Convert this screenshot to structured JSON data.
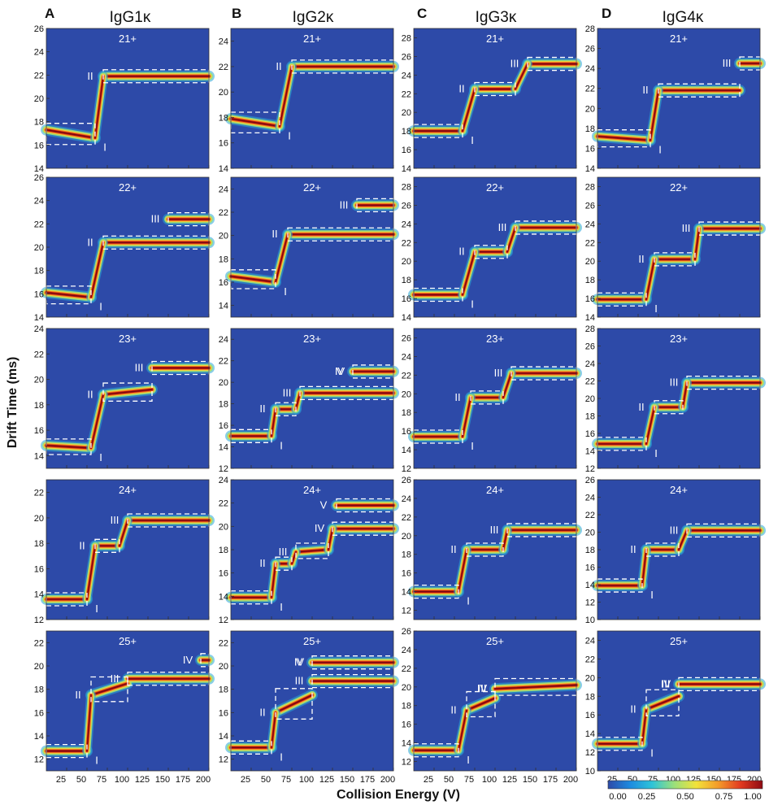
{
  "figure": {
    "ylabel": "Drift Time (ms)",
    "xlabel": "Collision Energy (V)",
    "colorbar": {
      "ticks": [
        "0.00",
        "0.25",
        "0.50",
        "0.75",
        "1.00"
      ],
      "colors": [
        "#2d4aa8",
        "#1c8be0",
        "#2ec4d8",
        "#9be07a",
        "#f2e23a",
        "#f39a2a",
        "#e23a20",
        "#8e0a12"
      ]
    },
    "x_ticks": [
      "25",
      "50",
      "75",
      "100",
      "125",
      "150",
      "175",
      "200"
    ]
  },
  "chart_data": [
    {
      "panel": "A",
      "title": "IgG1κ",
      "charge": "21+",
      "type": "heatmap",
      "xlim": [
        0,
        200
      ],
      "ylim": [
        14,
        26
      ],
      "yticks": [
        14,
        16,
        18,
        20,
        22,
        24,
        26
      ],
      "ridges": [
        {
          "x": [
            0,
            60
          ],
          "y": [
            17.3,
            16.6
          ]
        },
        {
          "x": [
            70,
            200
          ],
          "y": [
            21.9,
            21.9
          ]
        }
      ],
      "features": [
        "I",
        "II"
      ]
    },
    {
      "panel": "B",
      "title": "IgG2κ",
      "charge": "21+",
      "type": "heatmap",
      "xlim": [
        0,
        200
      ],
      "ylim": [
        14,
        25
      ],
      "yticks": [
        14,
        16,
        18,
        20,
        22,
        24
      ],
      "ridges": [
        {
          "x": [
            0,
            60
          ],
          "y": [
            17.9,
            17.3
          ]
        },
        {
          "x": [
            75,
            200
          ],
          "y": [
            22,
            22
          ]
        }
      ],
      "features": [
        "I",
        "II"
      ]
    },
    {
      "panel": "C",
      "title": "IgG3κ",
      "charge": "21+",
      "type": "heatmap",
      "xlim": [
        0,
        200
      ],
      "ylim": [
        14,
        29
      ],
      "yticks": [
        14,
        16,
        18,
        20,
        22,
        24,
        26,
        28
      ],
      "ridges": [
        {
          "x": [
            0,
            60
          ],
          "y": [
            18,
            18
          ]
        },
        {
          "x": [
            75,
            125
          ],
          "y": [
            22.5,
            22.5
          ]
        },
        {
          "x": [
            140,
            200
          ],
          "y": [
            25.2,
            25.2
          ]
        }
      ],
      "features": [
        "I",
        "II",
        "III"
      ]
    },
    {
      "panel": "D",
      "title": "IgG4κ",
      "charge": "21+",
      "type": "heatmap",
      "xlim": [
        0,
        200
      ],
      "ylim": [
        14,
        28
      ],
      "yticks": [
        14,
        16,
        18,
        20,
        22,
        24,
        26,
        28
      ],
      "ridges": [
        {
          "x": [
            0,
            65
          ],
          "y": [
            17.2,
            16.8
          ]
        },
        {
          "x": [
            75,
            175
          ],
          "y": [
            21.8,
            21.8
          ]
        },
        {
          "x": [
            175,
            200
          ],
          "y": [
            24.5,
            24.5
          ]
        }
      ],
      "features": [
        "I",
        "II",
        "III"
      ]
    },
    {
      "panel": "A",
      "title": "",
      "charge": "22+",
      "type": "heatmap",
      "xlim": [
        0,
        200
      ],
      "ylim": [
        14,
        26
      ],
      "yticks": [
        14,
        16,
        18,
        20,
        22,
        24,
        26
      ],
      "ridges": [
        {
          "x": [
            0,
            55
          ],
          "y": [
            16.1,
            15.7
          ]
        },
        {
          "x": [
            70,
            200
          ],
          "y": [
            20.4,
            20.4
          ]
        },
        {
          "x": [
            150,
            200
          ],
          "y": [
            22.4,
            22.4
          ]
        }
      ],
      "features": [
        "I",
        "II",
        "III"
      ]
    },
    {
      "panel": "B",
      "title": "",
      "charge": "22+",
      "type": "heatmap",
      "xlim": [
        0,
        200
      ],
      "ylim": [
        13,
        25
      ],
      "yticks": [
        14,
        16,
        18,
        20,
        22,
        24
      ],
      "ridges": [
        {
          "x": [
            0,
            55
          ],
          "y": [
            16.5,
            16
          ]
        },
        {
          "x": [
            70,
            200
          ],
          "y": [
            20.1,
            20.1
          ]
        },
        {
          "x": [
            155,
            200
          ],
          "y": [
            22.6,
            22.6
          ]
        }
      ],
      "features": [
        "I",
        "II",
        "III"
      ]
    },
    {
      "panel": "C",
      "title": "",
      "charge": "22+",
      "type": "heatmap",
      "xlim": [
        0,
        200
      ],
      "ylim": [
        14,
        29
      ],
      "yticks": [
        14,
        16,
        18,
        20,
        22,
        24,
        26,
        28
      ],
      "ridges": [
        {
          "x": [
            0,
            60
          ],
          "y": [
            16.4,
            16.4
          ]
        },
        {
          "x": [
            75,
            115
          ],
          "y": [
            21,
            21
          ]
        },
        {
          "x": [
            125,
            200
          ],
          "y": [
            23.6,
            23.6
          ]
        }
      ],
      "features": [
        "I",
        "II",
        "III"
      ]
    },
    {
      "panel": "D",
      "title": "",
      "charge": "22+",
      "type": "heatmap",
      "xlim": [
        0,
        200
      ],
      "ylim": [
        14,
        29
      ],
      "yticks": [
        14,
        16,
        18,
        20,
        22,
        24,
        26,
        28
      ],
      "ridges": [
        {
          "x": [
            0,
            60
          ],
          "y": [
            15.9,
            15.9
          ]
        },
        {
          "x": [
            70,
            120
          ],
          "y": [
            20.2,
            20.2
          ]
        },
        {
          "x": [
            125,
            200
          ],
          "y": [
            23.5,
            23.5
          ]
        }
      ],
      "features": [
        "I",
        "II",
        "III"
      ]
    },
    {
      "panel": "A",
      "title": "",
      "charge": "23+",
      "type": "heatmap",
      "xlim": [
        0,
        200
      ],
      "ylim": [
        13,
        24
      ],
      "yticks": [
        14,
        16,
        18,
        20,
        22,
        24
      ],
      "ridges": [
        {
          "x": [
            0,
            55
          ],
          "y": [
            14.8,
            14.6
          ]
        },
        {
          "x": [
            70,
            130
          ],
          "y": [
            18.8,
            19.2
          ]
        },
        {
          "x": [
            130,
            200
          ],
          "y": [
            20.9,
            20.9
          ]
        }
      ],
      "features": [
        "I",
        "II",
        "III"
      ]
    },
    {
      "panel": "B",
      "title": "",
      "charge": "23+",
      "type": "heatmap",
      "xlim": [
        0,
        200
      ],
      "ylim": [
        12,
        25
      ],
      "yticks": [
        12,
        14,
        16,
        18,
        20,
        22,
        24
      ],
      "ridges": [
        {
          "x": [
            0,
            50
          ],
          "y": [
            15,
            15
          ]
        },
        {
          "x": [
            55,
            80
          ],
          "y": [
            17.5,
            17.5
          ]
        },
        {
          "x": [
            85,
            200
          ],
          "y": [
            19,
            19
          ]
        },
        {
          "x": [
            150,
            200
          ],
          "y": [
            21,
            21
          ]
        }
      ],
      "features": [
        "I",
        "II",
        "III",
        "IV",
        "V"
      ]
    },
    {
      "panel": "C",
      "title": "",
      "charge": "23+",
      "type": "heatmap",
      "xlim": [
        0,
        200
      ],
      "ylim": [
        12,
        27
      ],
      "yticks": [
        12,
        14,
        16,
        18,
        20,
        22,
        24,
        26
      ],
      "ridges": [
        {
          "x": [
            0,
            60
          ],
          "y": [
            15.4,
            15.4
          ]
        },
        {
          "x": [
            70,
            110
          ],
          "y": [
            19.6,
            19.6
          ]
        },
        {
          "x": [
            120,
            200
          ],
          "y": [
            22.2,
            22.2
          ]
        }
      ],
      "features": [
        "I",
        "II",
        "III"
      ]
    },
    {
      "panel": "D",
      "title": "",
      "charge": "23+",
      "type": "heatmap",
      "xlim": [
        0,
        200
      ],
      "ylim": [
        12,
        28
      ],
      "yticks": [
        12,
        14,
        16,
        18,
        20,
        22,
        24,
        26,
        28
      ],
      "ridges": [
        {
          "x": [
            0,
            60
          ],
          "y": [
            14.8,
            14.8
          ]
        },
        {
          "x": [
            70,
            105
          ],
          "y": [
            19,
            19
          ]
        },
        {
          "x": [
            110,
            200
          ],
          "y": [
            21.8,
            21.8
          ]
        }
      ],
      "features": [
        "I",
        "II",
        "III"
      ]
    },
    {
      "panel": "A",
      "title": "",
      "charge": "24+",
      "type": "heatmap",
      "xlim": [
        0,
        200
      ],
      "ylim": [
        12,
        23
      ],
      "yticks": [
        12,
        14,
        16,
        18,
        20,
        22
      ],
      "ridges": [
        {
          "x": [
            0,
            50
          ],
          "y": [
            13.6,
            13.6
          ]
        },
        {
          "x": [
            60,
            90
          ],
          "y": [
            17.8,
            17.8
          ]
        },
        {
          "x": [
            100,
            200
          ],
          "y": [
            19.8,
            19.8
          ]
        }
      ],
      "features": [
        "I",
        "II",
        "III"
      ]
    },
    {
      "panel": "B",
      "title": "",
      "charge": "24+",
      "type": "heatmap",
      "xlim": [
        0,
        200
      ],
      "ylim": [
        12,
        24
      ],
      "yticks": [
        12,
        14,
        16,
        18,
        20,
        22,
        24
      ],
      "ridges": [
        {
          "x": [
            0,
            50
          ],
          "y": [
            13.9,
            13.9
          ]
        },
        {
          "x": [
            55,
            75
          ],
          "y": [
            16.8,
            16.8
          ]
        },
        {
          "x": [
            80,
            120
          ],
          "y": [
            17.8,
            18
          ]
        },
        {
          "x": [
            125,
            200
          ],
          "y": [
            19.8,
            19.8
          ]
        },
        {
          "x": [
            130,
            200
          ],
          "y": [
            21.8,
            21.8
          ]
        }
      ],
      "features": [
        "I",
        "II",
        "III",
        "IV",
        "V"
      ]
    },
    {
      "panel": "C",
      "title": "",
      "charge": "24+",
      "type": "heatmap",
      "xlim": [
        0,
        200
      ],
      "ylim": [
        11,
        26
      ],
      "yticks": [
        12,
        14,
        16,
        18,
        20,
        22,
        24,
        26
      ],
      "ridges": [
        {
          "x": [
            0,
            55
          ],
          "y": [
            14,
            14
          ]
        },
        {
          "x": [
            65,
            110
          ],
          "y": [
            18.5,
            18.5
          ]
        },
        {
          "x": [
            115,
            200
          ],
          "y": [
            20.6,
            20.6
          ]
        }
      ],
      "features": [
        "I",
        "II",
        "III"
      ]
    },
    {
      "panel": "D",
      "title": "",
      "charge": "24+",
      "type": "heatmap",
      "xlim": [
        0,
        200
      ],
      "ylim": [
        10,
        26
      ],
      "yticks": [
        10,
        12,
        14,
        16,
        18,
        20,
        22,
        24,
        26
      ],
      "ridges": [
        {
          "x": [
            0,
            55
          ],
          "y": [
            13.9,
            13.9
          ]
        },
        {
          "x": [
            60,
            100
          ],
          "y": [
            18,
            18
          ]
        },
        {
          "x": [
            110,
            200
          ],
          "y": [
            20.2,
            20.2
          ]
        }
      ],
      "features": [
        "I",
        "II",
        "III"
      ]
    },
    {
      "panel": "A",
      "title": "",
      "charge": "25+",
      "type": "heatmap",
      "xlim": [
        0,
        200
      ],
      "ylim": [
        11,
        23
      ],
      "yticks": [
        12,
        14,
        16,
        18,
        20,
        22
      ],
      "ridges": [
        {
          "x": [
            0,
            50
          ],
          "y": [
            12.7,
            12.7
          ]
        },
        {
          "x": [
            55,
            100
          ],
          "y": [
            17.5,
            18.5
          ]
        },
        {
          "x": [
            100,
            200
          ],
          "y": [
            18.9,
            18.9
          ]
        },
        {
          "x": [
            190,
            200
          ],
          "y": [
            20.5,
            20.5
          ]
        }
      ],
      "features": [
        "I",
        "II",
        "III",
        "IV"
      ]
    },
    {
      "panel": "B",
      "title": "",
      "charge": "25+",
      "type": "heatmap",
      "xlim": [
        0,
        200
      ],
      "ylim": [
        11,
        23
      ],
      "yticks": [
        12,
        14,
        16,
        18,
        20,
        22
      ],
      "ridges": [
        {
          "x": [
            0,
            50
          ],
          "y": [
            13,
            13
          ]
        },
        {
          "x": [
            55,
            100
          ],
          "y": [
            16,
            17.5
          ]
        },
        {
          "x": [
            100,
            200
          ],
          "y": [
            18.7,
            18.7
          ]
        },
        {
          "x": [
            100,
            200
          ],
          "y": [
            20.3,
            20.3
          ]
        }
      ],
      "features": [
        "I",
        "II",
        "III",
        "IV",
        "V"
      ]
    },
    {
      "panel": "C",
      "title": "",
      "charge": "25+",
      "type": "heatmap",
      "xlim": [
        0,
        200
      ],
      "ylim": [
        11,
        26
      ],
      "yticks": [
        12,
        14,
        16,
        18,
        20,
        22,
        24,
        26
      ],
      "ridges": [
        {
          "x": [
            0,
            55
          ],
          "y": [
            13.2,
            13.2
          ]
        },
        {
          "x": [
            65,
            100
          ],
          "y": [
            17.5,
            18.8
          ]
        },
        {
          "x": [
            100,
            200
          ],
          "y": [
            19.8,
            20.2
          ]
        }
      ],
      "features": [
        "I",
        "II",
        "III",
        "IV"
      ]
    },
    {
      "panel": "D",
      "title": "",
      "charge": "25+",
      "type": "heatmap",
      "xlim": [
        0,
        200
      ],
      "ylim": [
        10,
        25
      ],
      "yticks": [
        10,
        12,
        14,
        16,
        18,
        20,
        22,
        24
      ],
      "ridges": [
        {
          "x": [
            0,
            55
          ],
          "y": [
            12.9,
            12.9
          ]
        },
        {
          "x": [
            60,
            100
          ],
          "y": [
            16.6,
            18
          ]
        },
        {
          "x": [
            100,
            200
          ],
          "y": [
            19.3,
            19.3
          ]
        }
      ],
      "features": [
        "I",
        "II",
        "III",
        "IV"
      ]
    }
  ]
}
